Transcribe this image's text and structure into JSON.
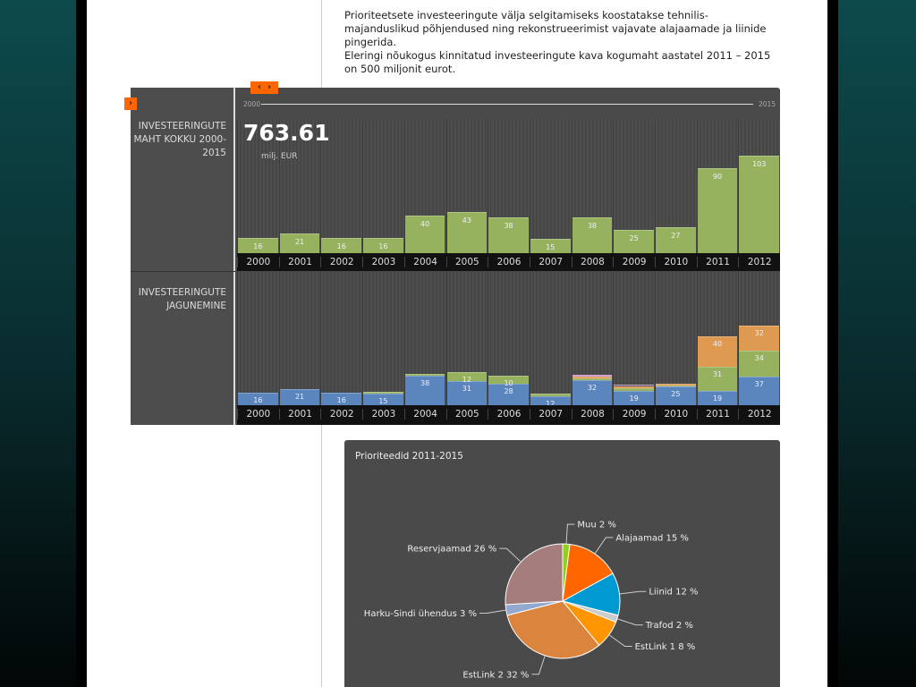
{
  "intro": {
    "p1": "Prioriteetsete investeeringute välja selgitamiseks koostatakse tehnilis-majanduslikud põhjendused ning rekonstrueerimist vajavate alajaamade ja liinide pingerida.",
    "p2": "Eleringi nõukogus kinnitatud investeeringute kava kogumaht aastatel 2011 – 2015 on 500 miljonit eurot."
  },
  "timeline": {
    "start": "2000",
    "end": "2015"
  },
  "colors": {
    "blue": "#5b86bd",
    "green": "#97b25e",
    "orange": "#df9a52",
    "pink": "#c98fc6"
  },
  "chart_data": [
    {
      "type": "bar",
      "title": "INVESTEERINGUTE MAHT KOKKU 2000-2015",
      "total": "763.61",
      "unit": "milj. EUR",
      "categories": [
        "2000",
        "2001",
        "2002",
        "2003",
        "2004",
        "2005",
        "2006",
        "2007",
        "2008",
        "2009",
        "2010",
        "2011",
        "2012"
      ],
      "values": [
        16,
        21,
        16,
        16,
        40,
        43,
        38,
        15,
        38,
        25,
        27,
        90,
        103
      ]
    },
    {
      "type": "bar",
      "stacked": true,
      "title": "INVESTEERINGUTE JAGUNEMINE",
      "categories": [
        "2000",
        "2001",
        "2002",
        "2003",
        "2004",
        "2005",
        "2006",
        "2007",
        "2008",
        "2009",
        "2010",
        "2011",
        "2012"
      ],
      "series": [
        {
          "name": "blue",
          "values": [
            16,
            21,
            16,
            15,
            38,
            31,
            28,
            12,
            32,
            19,
            25,
            19,
            37
          ]
        },
        {
          "name": "green",
          "values": [
            0,
            0,
            0,
            2,
            3,
            12,
            10,
            3,
            3,
            3,
            1,
            31,
            34
          ]
        },
        {
          "name": "orange",
          "values": [
            0,
            0,
            0,
            0,
            0,
            0,
            0,
            0,
            2,
            3,
            2,
            40,
            32
          ]
        },
        {
          "name": "pink",
          "values": [
            0,
            0,
            0,
            0,
            0,
            0,
            0,
            0,
            2,
            2,
            0,
            0,
            0
          ]
        }
      ]
    },
    {
      "type": "pie",
      "title": "Prioriteedid 2011-2015",
      "slices": [
        {
          "label": "Muu 2 %",
          "value": 2,
          "color": "#8fd11e"
        },
        {
          "label": "Alajaamad 15 %",
          "value": 15,
          "color": "#ff6600"
        },
        {
          "label": "Liinid 12 %",
          "value": 12,
          "color": "#0199d1"
        },
        {
          "label": "Trafod 2 %",
          "value": 2,
          "color": "#cccccc"
        },
        {
          "label": "EstLink 1 8 %",
          "value": 8,
          "color": "#ff9500"
        },
        {
          "label": "EstLink 2 32 %",
          "value": 32,
          "color": "#db843d"
        },
        {
          "label": "Harku-Sindi ühendus 3 %",
          "value": 3,
          "color": "#92a8cd"
        },
        {
          "label": "Reservjaamad 26 %",
          "value": 26,
          "color": "#a47d7c"
        }
      ]
    }
  ]
}
